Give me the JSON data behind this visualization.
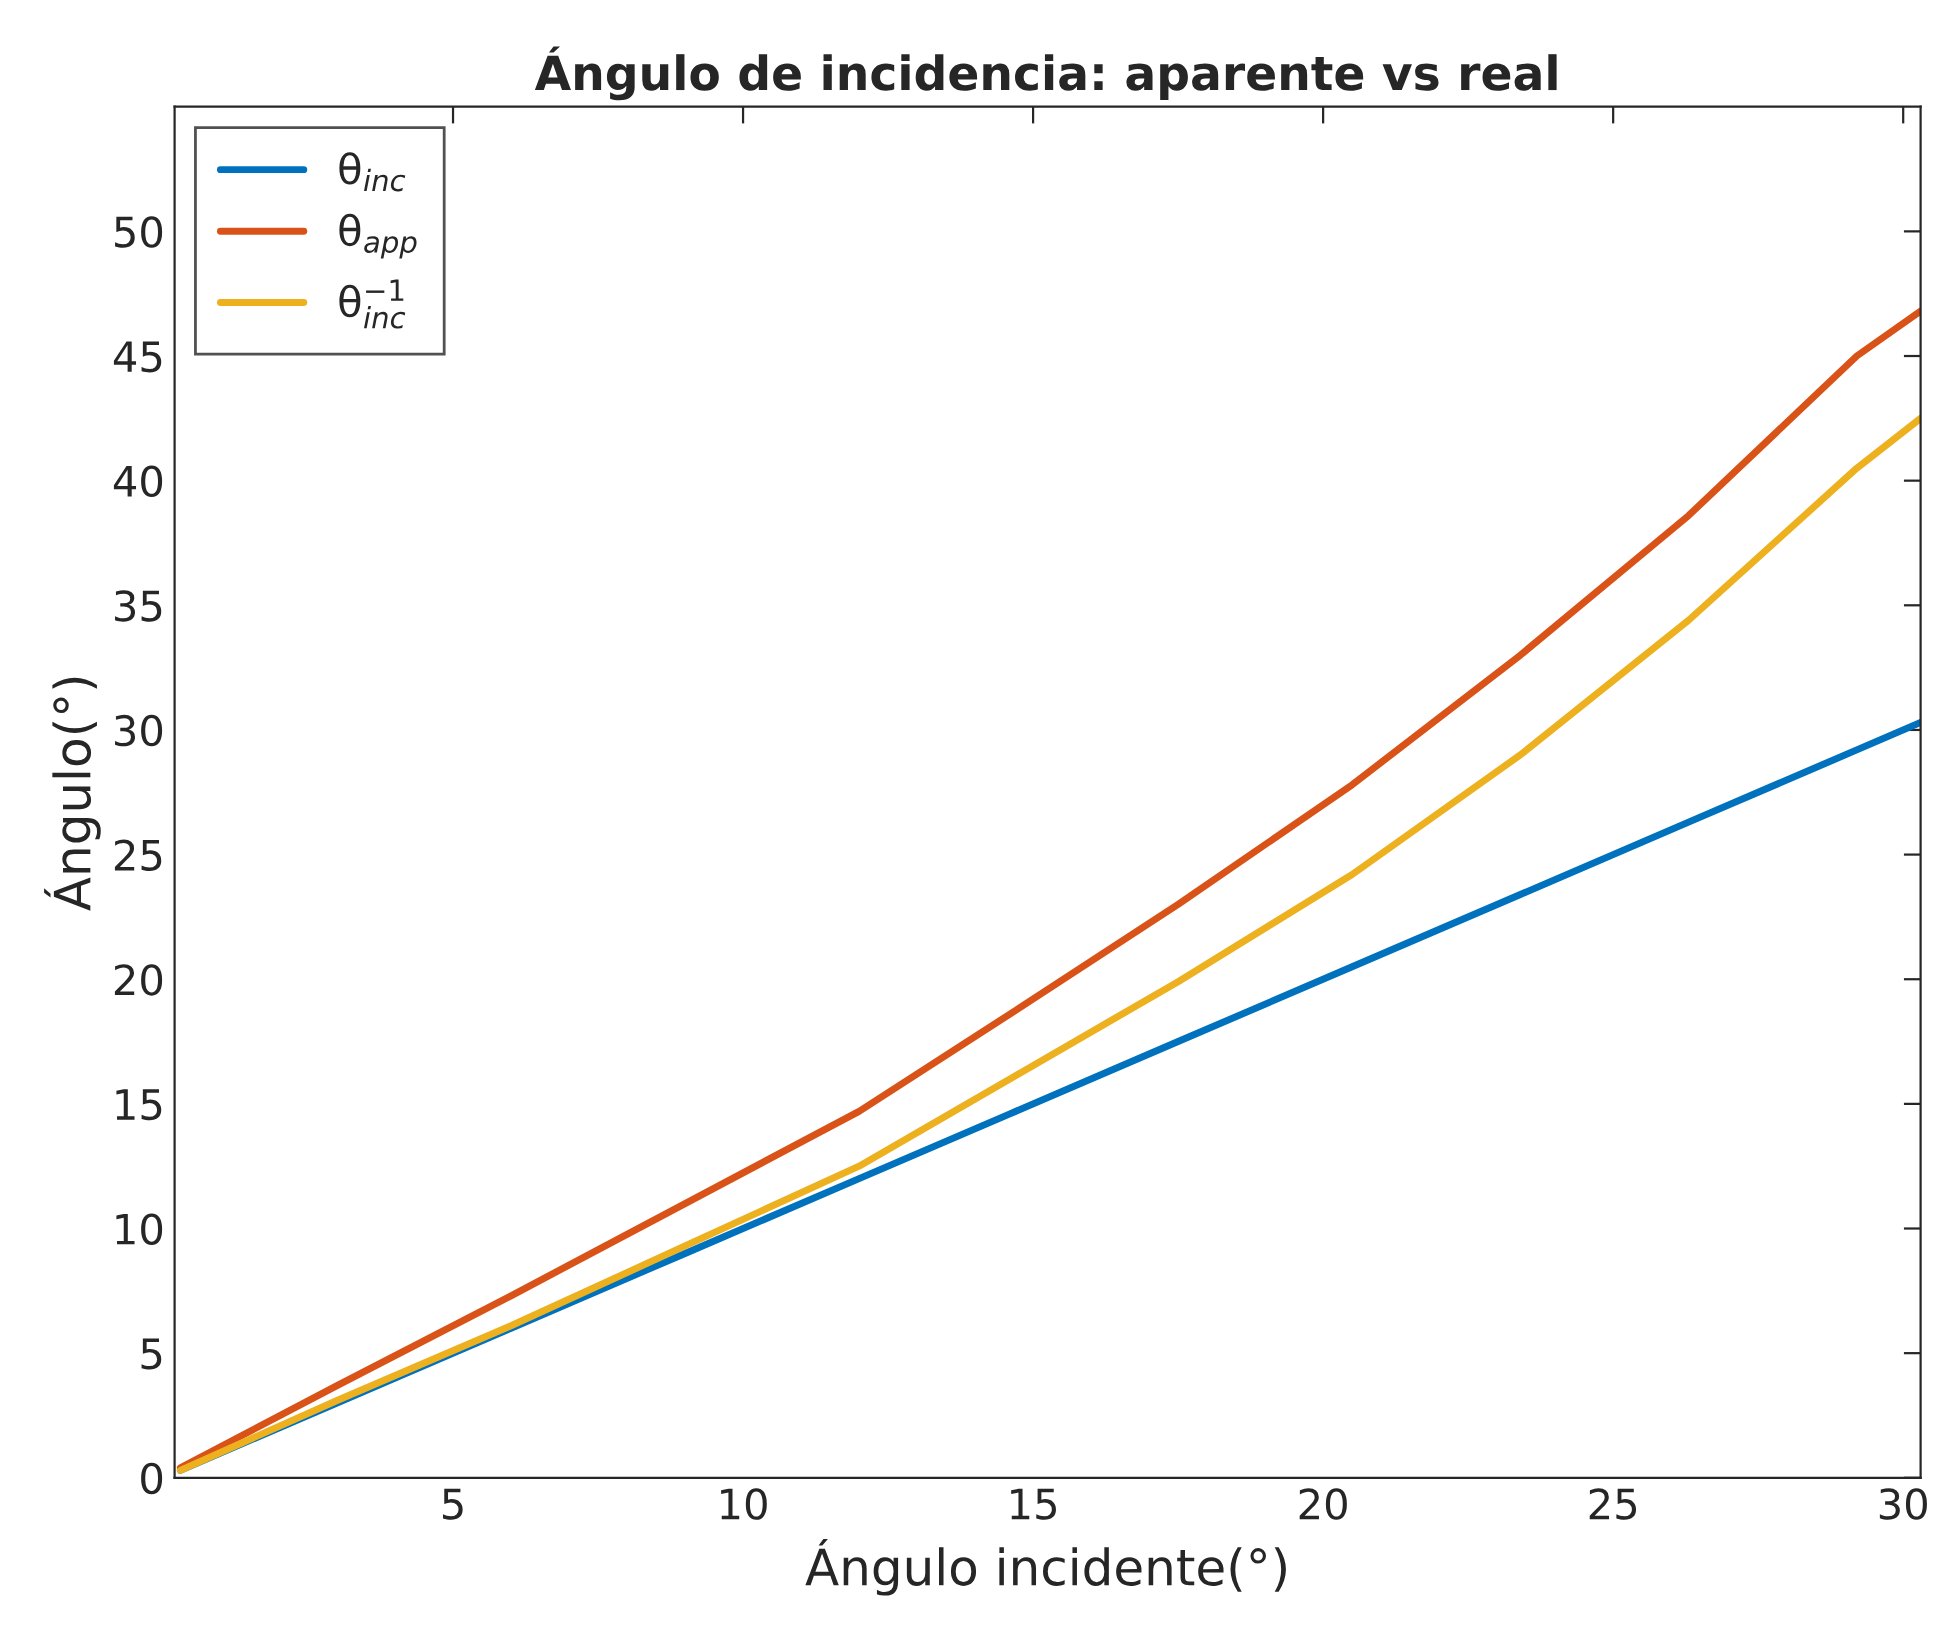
{
  "chart_data": {
    "type": "line",
    "title": "Ángulo de incidencia: aparente vs real",
    "xlabel": "Ángulo incidente(°)",
    "ylabel": "Ángulo(°)",
    "xlim": [
      0.2,
      30.3
    ],
    "xticks": [
      5,
      10,
      15,
      20,
      25,
      30
    ],
    "ylim": [
      0,
      55
    ],
    "yticks": [
      0,
      5,
      10,
      15,
      20,
      25,
      30,
      35,
      40,
      45,
      50
    ],
    "grid": false,
    "legend": "top left",
    "marker": "none",
    "line_style": "solid",
    "series": [
      {
        "name": "θ$_{inc}$",
        "color": "#0072bd",
        "x": [
          0.3,
          3,
          6,
          9,
          12,
          14.6,
          17.5,
          20.5,
          23.4,
          26.3,
          29.2,
          30.3
        ],
        "values": [
          0.3,
          3,
          6,
          9,
          12,
          14.6,
          17.5,
          20.5,
          23.4,
          26.3,
          29.2,
          30.3
        ]
      },
      {
        "name": "θ$_{app}$",
        "color": "#d95319",
        "x": [
          0.3,
          3,
          6,
          9,
          12,
          14.6,
          17.5,
          20.5,
          23.4,
          26.3,
          29.2,
          30.3
        ],
        "values": [
          0.4,
          3.7,
          7.3,
          11,
          14.7,
          18.6,
          23,
          27.8,
          33,
          38.6,
          45,
          46.8
        ]
      },
      {
        "name": "θ$^{−1}$$_{inc}$",
        "color": "#edb120",
        "x": [
          0.3,
          3,
          6,
          9,
          12,
          14.6,
          17.5,
          20.5,
          23.4,
          26.3,
          29.2,
          30.3
        ],
        "values": [
          0.3,
          3.1,
          6.1,
          9.3,
          12.5,
          16,
          19.9,
          24.2,
          29,
          34.4,
          40.5,
          42.5
        ]
      }
    ]
  }
}
